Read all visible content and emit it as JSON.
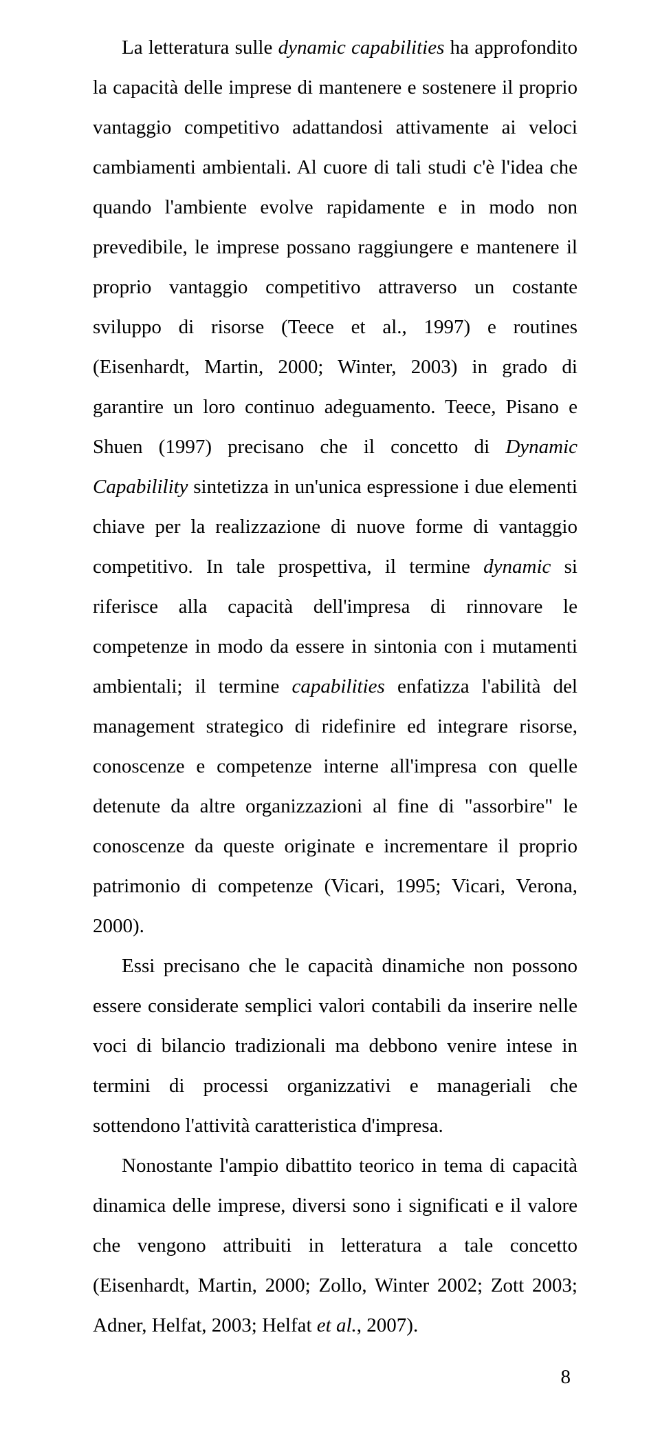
{
  "paragraphs": {
    "p1_a": "La letteratura sulle ",
    "p1_italic1": "dynamic capabilities",
    "p1_b": " ha approfondito la capacità delle imprese di mantenere e sostenere il proprio vantaggio competitivo adattandosi attivamente ai veloci cambiamenti ambientali. Al cuore di tali studi c'è l'idea che quando l'ambiente evolve rapidamente e in modo non prevedibile, le imprese possano raggiungere e mantenere il proprio vantaggio competitivo attraverso un costante sviluppo di risorse (Teece et al., 1997) e routines (Eisenhardt, Martin, 2000; Winter, 2003) in grado di garantire un loro continuo adeguamento. Teece, Pisano e Shuen (1997) precisano che il concetto di ",
    "p1_italic2": "Dynamic Capabilility",
    "p1_c": " sintetizza in un'unica espressione i due elementi chiave per la realizzazione di nuove forme di vantaggio competitivo. In tale prospettiva, il termine ",
    "p1_italic3": "dynamic",
    "p1_d": " si riferisce alla capacità dell'impresa di rinnovare le competenze in modo da essere in sintonia con i mutamenti ambientali; il termine ",
    "p1_italic4": "capabilities",
    "p1_e": " enfatizza l'abilità del management strategico di ridefinire ed integrare risorse, conoscenze e competenze interne all'impresa con quelle detenute da altre organizzazioni al fine di \"assorbire\" le conoscenze da queste originate e incrementare il proprio patrimonio di competenze (Vicari, 1995; Vicari, Verona, 2000).",
    "p2": "Essi precisano che le capacità dinamiche non possono essere considerate semplici valori contabili da inserire nelle voci di bilancio tradizionali ma debbono venire intese in termini di processi organizzativi e manageriali che sottendono l'attività caratteristica d'impresa.",
    "p3_a": "Nonostante l'ampio dibattito teorico in tema di capacità dinamica delle imprese, diversi sono i significati e il valore che vengono attribuiti in letteratura a tale concetto (Eisenhardt, Martin, 2000; Zollo, Winter 2002; Zott 2003; Adner, Helfat, 2003; Helfat ",
    "p3_italic1": "et al.",
    "p3_b": ", 2007)."
  },
  "page_number": "8"
}
